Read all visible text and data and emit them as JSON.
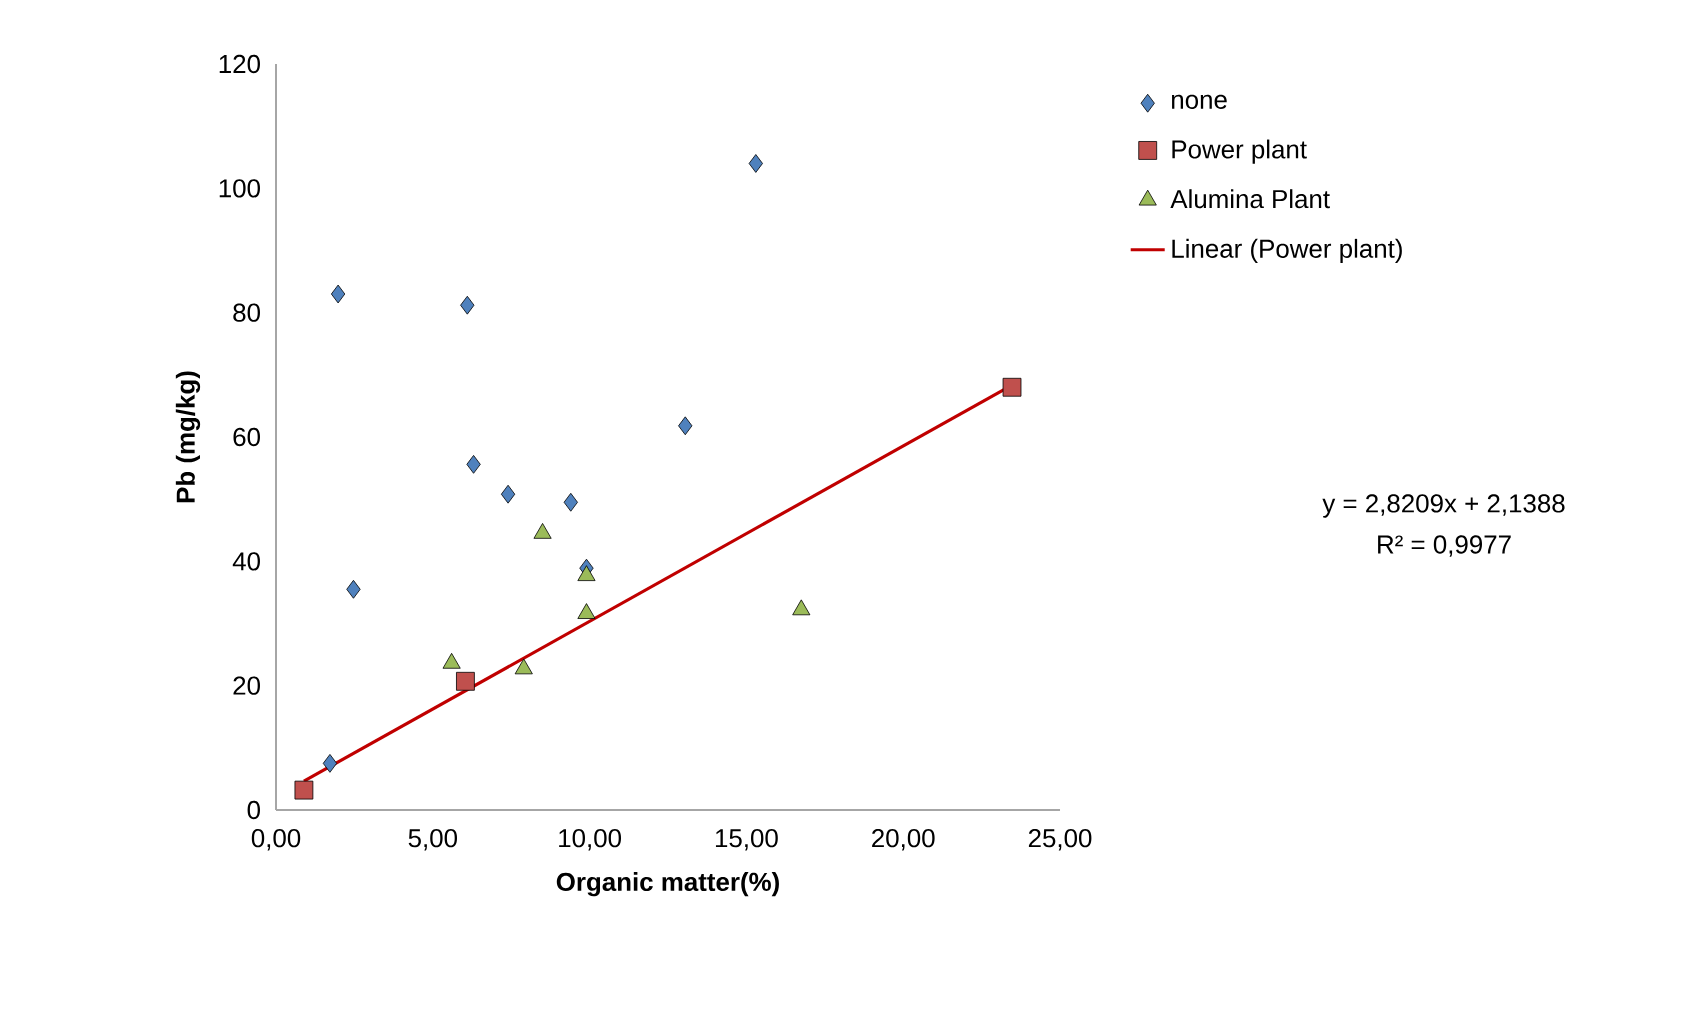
{
  "chart_data": {
    "type": "scatter",
    "xlabel": "Organic matter(%)",
    "ylabel": "Pb (mg/kg)",
    "xlim": [
      0,
      25
    ],
    "ylim": [
      0,
      120
    ],
    "xticks": [
      {
        "value": 0,
        "label": "0,00"
      },
      {
        "value": 5,
        "label": "5,00"
      },
      {
        "value": 10,
        "label": "10,00"
      },
      {
        "value": 15,
        "label": "15,00"
      },
      {
        "value": 20,
        "label": "20,00"
      },
      {
        "value": 25,
        "label": "25,00"
      }
    ],
    "yticks": [
      0,
      20,
      40,
      60,
      80,
      100,
      120
    ],
    "grid": false,
    "legend": "right",
    "series": [
      {
        "name": "none",
        "color": "#4f81bd",
        "marker": "diamond",
        "x": [
          1.98,
          6.1,
          15.3,
          2.47,
          6.3,
          7.4,
          9.4,
          9.9,
          13.05,
          1.72
        ],
        "values": [
          83.0,
          81.2,
          104,
          35.5,
          55.6,
          50.8,
          49.5,
          38.9,
          61.8,
          7.5
        ]
      },
      {
        "name": "Power plant",
        "color": "#c0504d",
        "marker": "square",
        "x": [
          0.89,
          6.04,
          23.47
        ],
        "values": [
          3.2,
          20.7,
          68.0
        ]
      },
      {
        "name": "Alumina Plant",
        "color": "#9bbb59",
        "marker": "triangle",
        "x": [
          5.6,
          7.9,
          8.5,
          9.9,
          9.9,
          16.75
        ],
        "values": [
          23.6,
          22.7,
          44.5,
          37.7,
          31.6,
          32.2
        ]
      },
      {
        "name": "Linear (Power plant)",
        "type": "line",
        "color": "#c00000",
        "marker": "none",
        "line_style": "solid",
        "x": [
          0.89,
          23.47
        ],
        "values": [
          4.65,
          68.35
        ]
      }
    ],
    "annotations": [
      "y = 2,8209x + 2,1388",
      "R² = 0,9977"
    ]
  }
}
